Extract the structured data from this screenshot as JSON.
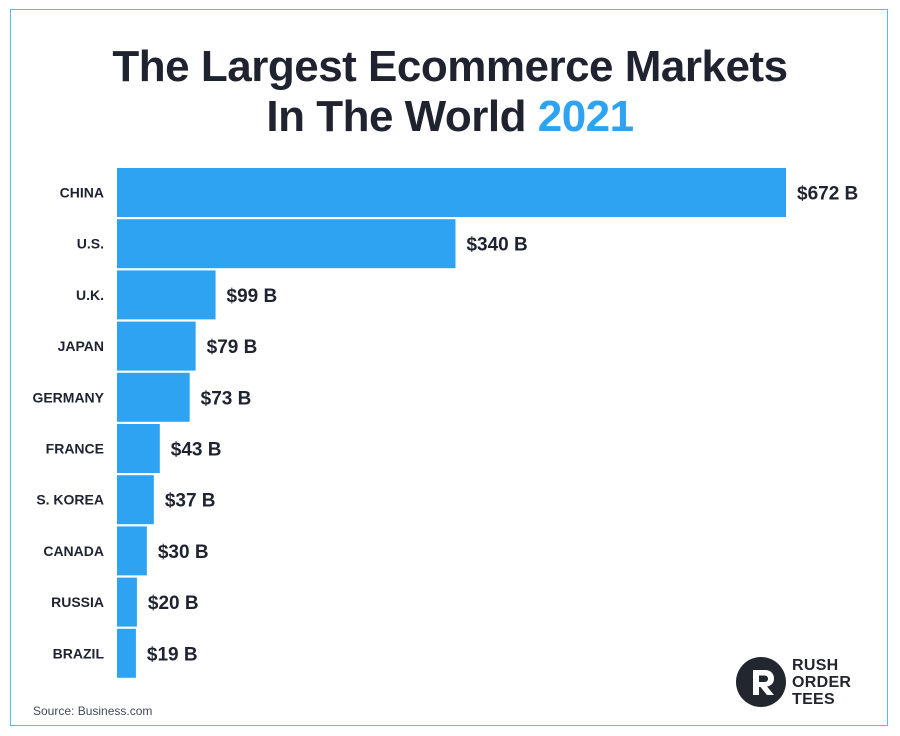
{
  "title": {
    "line1": "The Largest Ecommerce Markets",
    "line2_prefix": "In The World",
    "line2_year": "2021"
  },
  "colors": {
    "bar": "#2ea3f2",
    "accent": "#2ea3f2",
    "text": "#1f2330",
    "border": "#5bbce8"
  },
  "chart_data": {
    "type": "bar",
    "orientation": "horizontal",
    "title": "The Largest Ecommerce Markets In The World 2021",
    "categories": [
      "CHINA",
      "U.S.",
      "U.K.",
      "JAPAN",
      "GERMANY",
      "FRANCE",
      "S. KOREA",
      "CANADA",
      "RUSSIA",
      "BRAZIL"
    ],
    "values": [
      672,
      340,
      99,
      79,
      73,
      43,
      37,
      30,
      20,
      19
    ],
    "value_labels": [
      "$672 B",
      "$340 B",
      "$99 B",
      "$79 B",
      "$73 B",
      "$43 B",
      "$37 B",
      "$30 B",
      "$20 B",
      "$19 B"
    ],
    "unit": "billion USD",
    "xlim": [
      0,
      672
    ],
    "grid": false,
    "legend": "none"
  },
  "source": "Source: Business.com",
  "logo": {
    "icon": "rush-order-tees-logo-icon",
    "line1": "RUSH",
    "line2": "ORDER",
    "line3": "TEES"
  }
}
